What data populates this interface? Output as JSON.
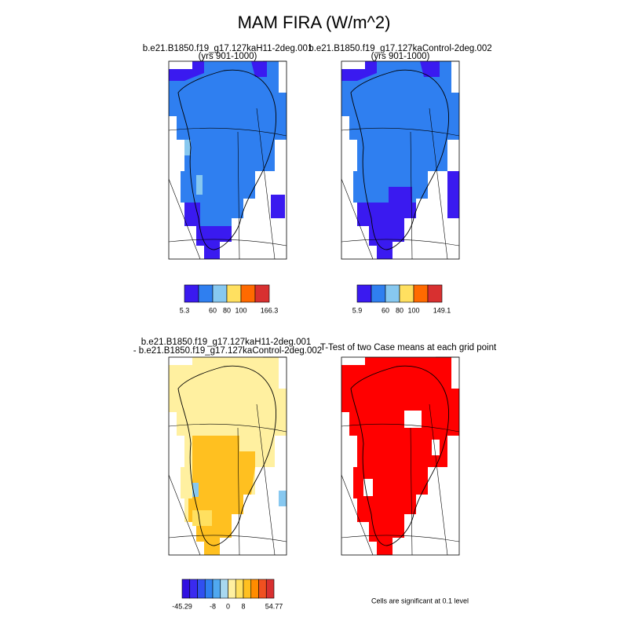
{
  "title": "MAM FIRA (W/m^2)",
  "panels": [
    {
      "title_lines": [
        "b.e21.B1850.f19_g17.127kaH11-2deg.001",
        "(yrs 901-1000)"
      ],
      "colorbar": {
        "colors": [
          "#3a1af0",
          "#2f7ff0",
          "#87c8f0",
          "#ffe060",
          "#ff6a00",
          "#d83030"
        ],
        "labels": [
          5.3,
          60,
          80,
          100,
          166.3
        ]
      }
    },
    {
      "title_lines": [
        "b.e21.B1850.f19_g17.127kaControl-2deg.002",
        "(yrs 901-1000)"
      ],
      "colorbar": {
        "colors": [
          "#3a1af0",
          "#2f7ff0",
          "#87c8f0",
          "#ffe060",
          "#ff6a00",
          "#d83030"
        ],
        "labels": [
          5.9,
          60,
          80,
          100,
          149.1
        ]
      }
    },
    {
      "title_lines": [
        "b.e21.B1850.f19_g17.127kaH11-2deg.001",
        "- b.e21.B1850.f19_g17.127kaControl-2deg.002"
      ],
      "colorbar": {
        "colors": [
          "#3010e0",
          "#3a2af0",
          "#3050f0",
          "#2f7ff0",
          "#50a8f0",
          "#a8d8f0",
          "#fff0a0",
          "#ffe060",
          "#ffc020",
          "#ff8c00",
          "#f05020",
          "#d83030"
        ],
        "labels": [
          -45.29,
          -8,
          0,
          8,
          54.77
        ]
      }
    },
    {
      "title_lines": [
        "T-Test of two Case means at each grid point"
      ],
      "note": "Cells are significant at 0.1 level"
    }
  ]
}
